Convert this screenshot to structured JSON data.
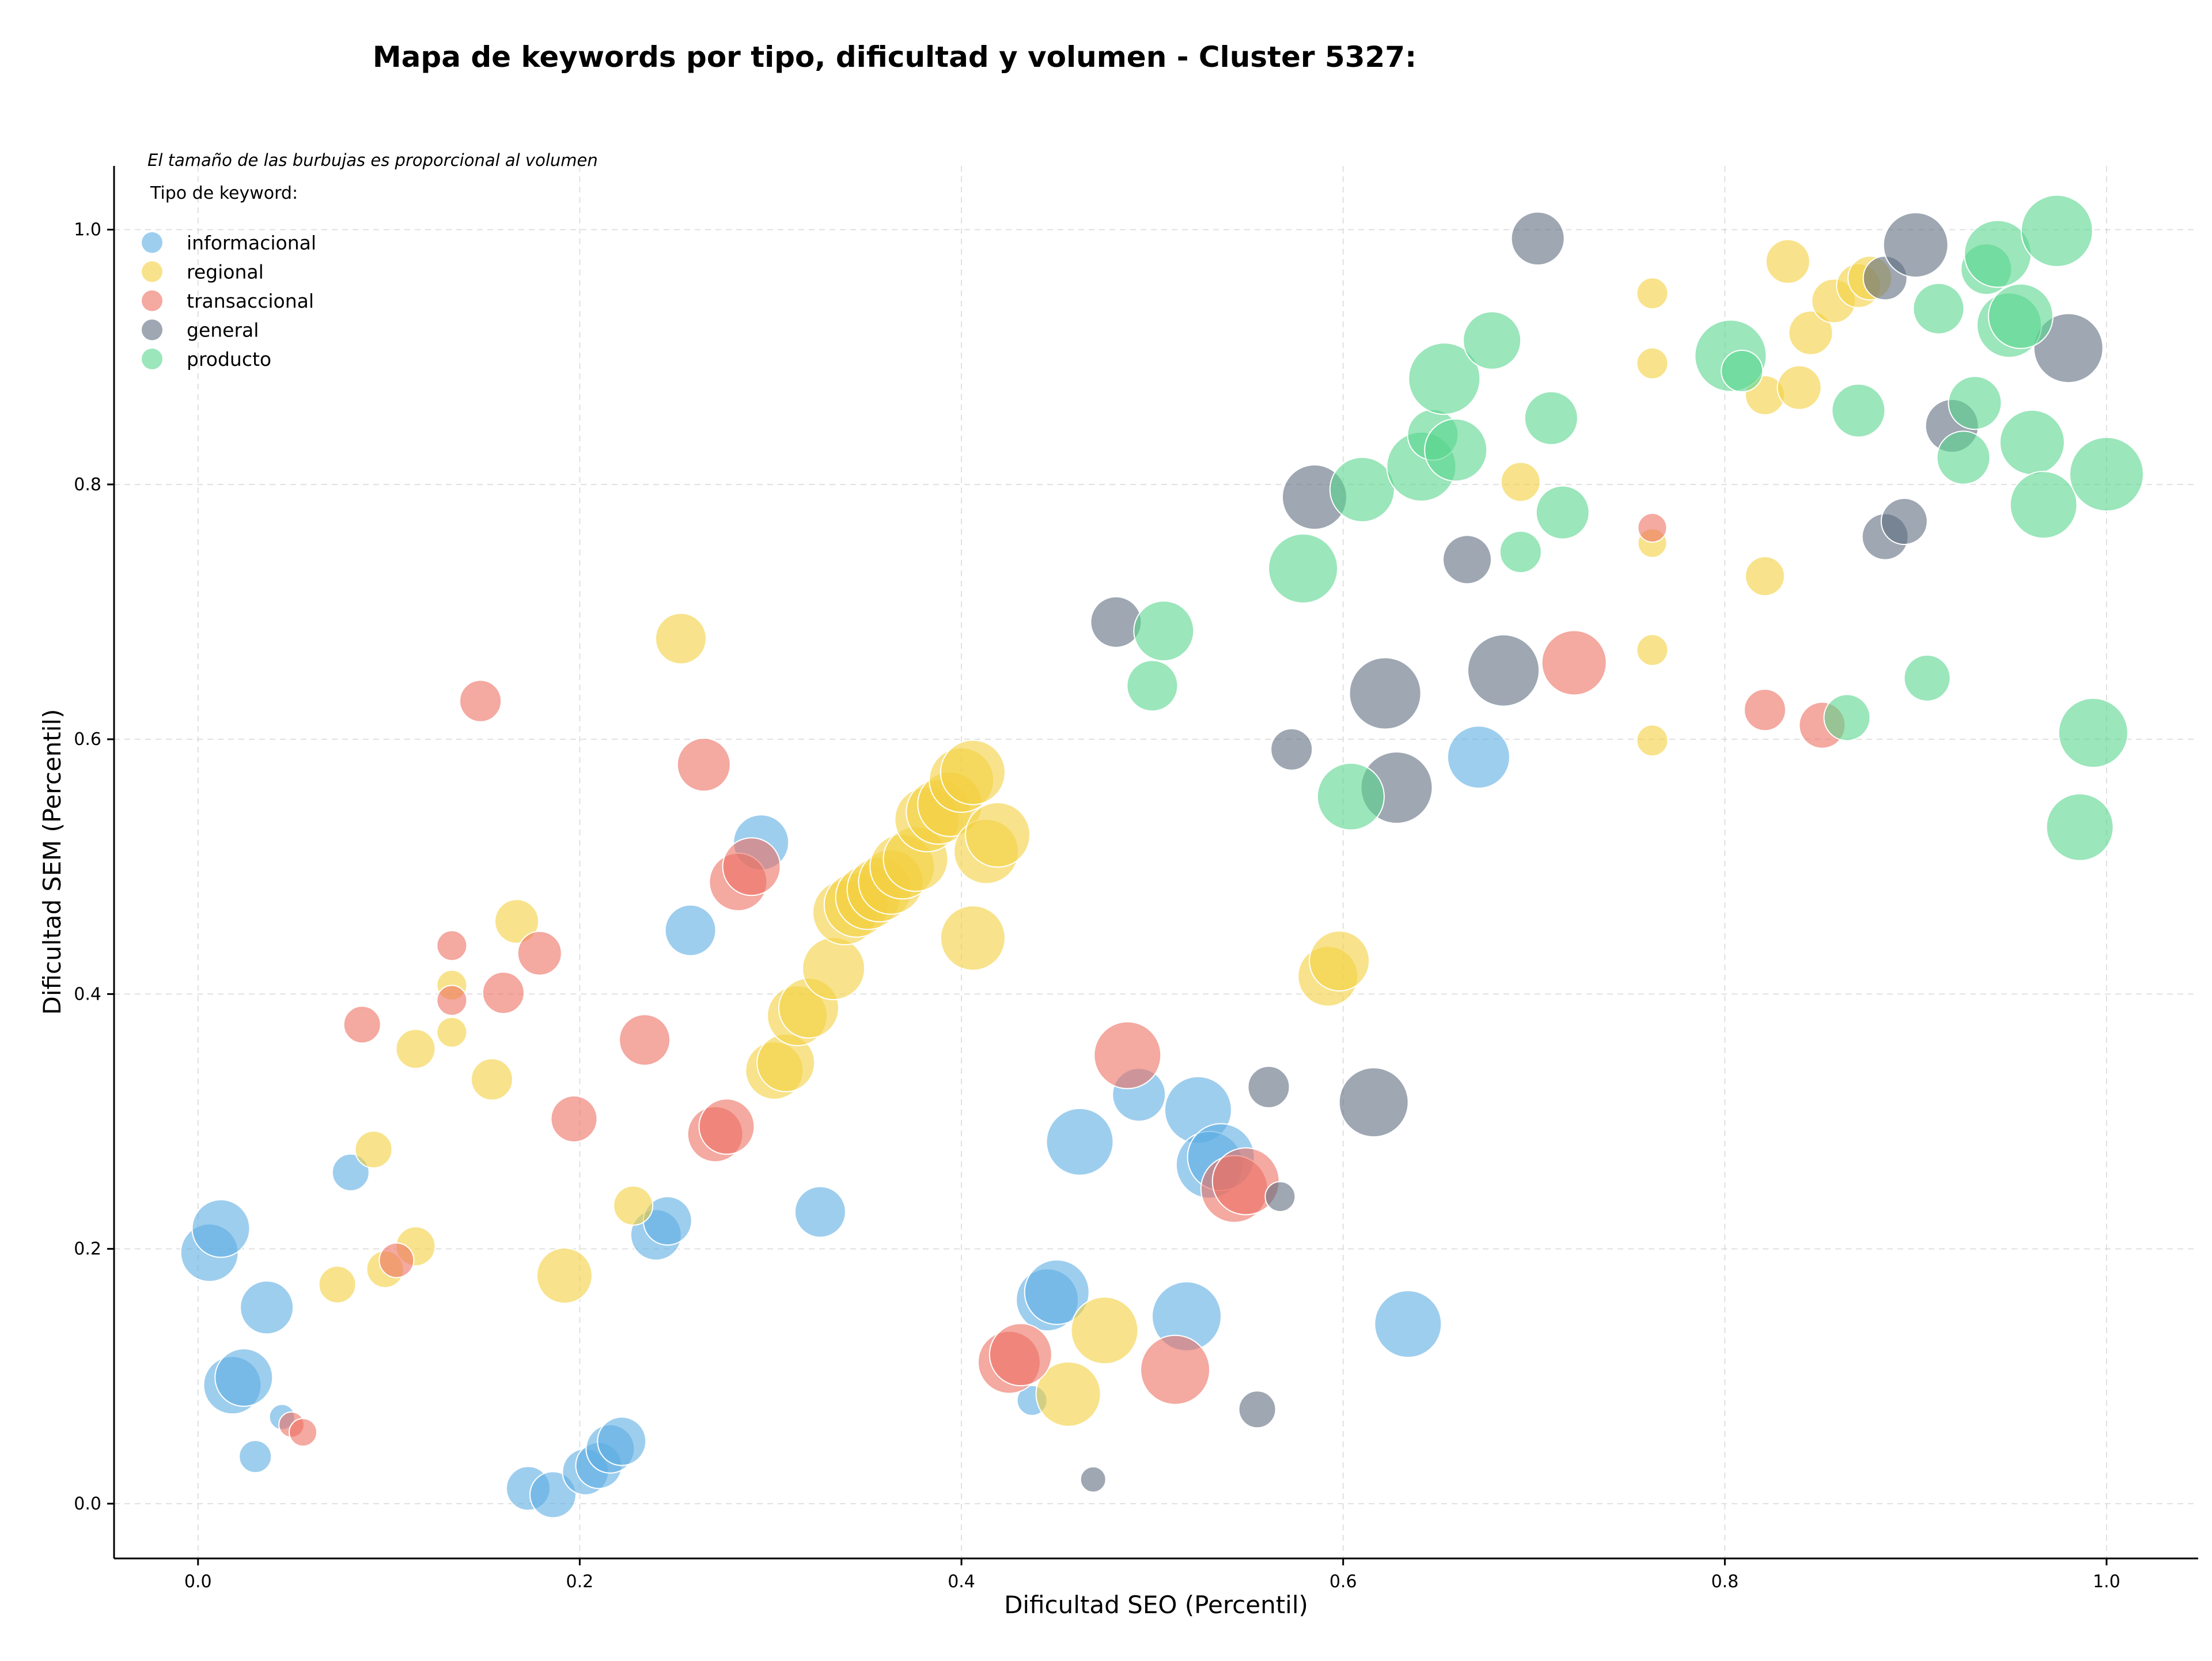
{
  "chart_data": {
    "type": "scatter",
    "title": "Mapa de keywords por tipo, dificultad y volumen - Cluster 5327:",
    "xlabel": "Dificultad SEO (Percentil)",
    "ylabel": "Dificultad SEM (Percentil)",
    "annotation": "El tamaño de las burbujas es proporcional al volumen",
    "legend_title": "Tipo de keyword:",
    "legend_position": "top-left",
    "grid": true,
    "xlim": [
      -0.044,
      1.048
    ],
    "ylim": [
      -0.043,
      1.05
    ],
    "x_ticks": [
      "0.0",
      "0.2",
      "0.4",
      "0.6",
      "0.8",
      "1.0"
    ],
    "y_ticks": [
      "0.0",
      "0.2",
      "0.4",
      "0.6",
      "0.8",
      "1.0"
    ],
    "series": [
      {
        "name": "informacional",
        "color": "#5DADE2",
        "points": [
          [
            0.006,
            0.197,
            50
          ],
          [
            0.012,
            0.216,
            50
          ],
          [
            0.018,
            0.093,
            50
          ],
          [
            0.024,
            0.099,
            50
          ],
          [
            0.036,
            0.154,
            46
          ],
          [
            0.044,
            0.068,
            22
          ],
          [
            0.03,
            0.037,
            28
          ],
          [
            0.08,
            0.26,
            32
          ],
          [
            0.173,
            0.012,
            38
          ],
          [
            0.186,
            0.007,
            40
          ],
          [
            0.203,
            0.025,
            40
          ],
          [
            0.21,
            0.03,
            40
          ],
          [
            0.216,
            0.043,
            42
          ],
          [
            0.222,
            0.049,
            42
          ],
          [
            0.24,
            0.211,
            44
          ],
          [
            0.246,
            0.222,
            42
          ],
          [
            0.258,
            0.45,
            44
          ],
          [
            0.295,
            0.519,
            48
          ],
          [
            0.326,
            0.229,
            44
          ],
          [
            0.437,
            0.081,
            26
          ],
          [
            0.445,
            0.16,
            54
          ],
          [
            0.45,
            0.166,
            56
          ],
          [
            0.462,
            0.284,
            58
          ],
          [
            0.493,
            0.321,
            46
          ],
          [
            0.524,
            0.309,
            58
          ],
          [
            0.53,
            0.266,
            58
          ],
          [
            0.536,
            0.272,
            58
          ],
          [
            0.518,
            0.147,
            60
          ],
          [
            0.634,
            0.141,
            58
          ],
          [
            0.671,
            0.586,
            54
          ]
        ]
      },
      {
        "name": "regional",
        "color": "#F4D03F",
        "points": [
          [
            0.073,
            0.172,
            32
          ],
          [
            0.092,
            0.278,
            32
          ],
          [
            0.098,
            0.184,
            32
          ],
          [
            0.114,
            0.202,
            34
          ],
          [
            0.114,
            0.357,
            34
          ],
          [
            0.133,
            0.407,
            26
          ],
          [
            0.133,
            0.37,
            26
          ],
          [
            0.154,
            0.333,
            36
          ],
          [
            0.167,
            0.457,
            38
          ],
          [
            0.192,
            0.179,
            48
          ],
          [
            0.228,
            0.234,
            34
          ],
          [
            0.253,
            0.679,
            44
          ],
          [
            0.302,
            0.34,
            50
          ],
          [
            0.308,
            0.346,
            50
          ],
          [
            0.314,
            0.383,
            52
          ],
          [
            0.32,
            0.389,
            52
          ],
          [
            0.333,
            0.42,
            54
          ],
          [
            0.339,
            0.464,
            56
          ],
          [
            0.345,
            0.47,
            56
          ],
          [
            0.351,
            0.476,
            56
          ],
          [
            0.357,
            0.482,
            56
          ],
          [
            0.363,
            0.488,
            56
          ],
          [
            0.369,
            0.5,
            56
          ],
          [
            0.376,
            0.506,
            56
          ],
          [
            0.382,
            0.537,
            56
          ],
          [
            0.388,
            0.543,
            56
          ],
          [
            0.394,
            0.549,
            56
          ],
          [
            0.4,
            0.568,
            56
          ],
          [
            0.406,
            0.574,
            56
          ],
          [
            0.406,
            0.444,
            56
          ],
          [
            0.413,
            0.512,
            56
          ],
          [
            0.419,
            0.525,
            56
          ],
          [
            0.456,
            0.086,
            56
          ],
          [
            0.475,
            0.136,
            58
          ],
          [
            0.592,
            0.414,
            52
          ],
          [
            0.598,
            0.426,
            52
          ],
          [
            0.693,
            0.802,
            34
          ],
          [
            0.762,
            0.95,
            27
          ],
          [
            0.762,
            0.895,
            27
          ],
          [
            0.762,
            0.754,
            25
          ],
          [
            0.762,
            0.67,
            27
          ],
          [
            0.762,
            0.599,
            27
          ],
          [
            0.821,
            0.87,
            34
          ],
          [
            0.821,
            0.728,
            34
          ],
          [
            0.833,
            0.975,
            38
          ],
          [
            0.839,
            0.876,
            38
          ],
          [
            0.845,
            0.919,
            38
          ],
          [
            0.857,
            0.944,
            38
          ],
          [
            0.87,
            0.956,
            38
          ],
          [
            0.876,
            0.962,
            38
          ]
        ]
      },
      {
        "name": "transaccional",
        "color": "#EC7063",
        "points": [
          [
            0.049,
            0.062,
            22
          ],
          [
            0.055,
            0.056,
            24
          ],
          [
            0.086,
            0.376,
            32
          ],
          [
            0.104,
            0.191,
            30
          ],
          [
            0.133,
            0.438,
            26
          ],
          [
            0.133,
            0.395,
            26
          ],
          [
            0.148,
            0.63,
            36
          ],
          [
            0.16,
            0.401,
            36
          ],
          [
            0.179,
            0.432,
            38
          ],
          [
            0.197,
            0.302,
            40
          ],
          [
            0.234,
            0.364,
            44
          ],
          [
            0.265,
            0.58,
            46
          ],
          [
            0.271,
            0.29,
            48
          ],
          [
            0.277,
            0.296,
            48
          ],
          [
            0.283,
            0.488,
            50
          ],
          [
            0.29,
            0.5,
            50
          ],
          [
            0.425,
            0.111,
            54
          ],
          [
            0.431,
            0.117,
            54
          ],
          [
            0.487,
            0.352,
            58
          ],
          [
            0.512,
            0.105,
            60
          ],
          [
            0.543,
            0.247,
            58
          ],
          [
            0.549,
            0.253,
            58
          ],
          [
            0.721,
            0.66,
            56
          ],
          [
            0.762,
            0.766,
            25
          ],
          [
            0.821,
            0.623,
            36
          ],
          [
            0.851,
            0.611,
            40
          ]
        ]
      },
      {
        "name": "general",
        "color": "#5D6D7E",
        "points": [
          [
            0.469,
            0.019,
            22
          ],
          [
            0.481,
            0.692,
            44
          ],
          [
            0.555,
            0.074,
            32
          ],
          [
            0.561,
            0.327,
            36
          ],
          [
            0.567,
            0.241,
            26
          ],
          [
            0.573,
            0.592,
            36
          ],
          [
            0.585,
            0.79,
            56
          ],
          [
            0.616,
            0.315,
            60
          ],
          [
            0.622,
            0.636,
            62
          ],
          [
            0.628,
            0.562,
            62
          ],
          [
            0.665,
            0.741,
            42
          ],
          [
            0.684,
            0.654,
            62
          ],
          [
            0.702,
            0.993,
            46
          ],
          [
            0.884,
            0.759,
            40
          ],
          [
            0.884,
            0.962,
            38
          ],
          [
            0.894,
            0.771,
            40
          ],
          [
            0.9,
            0.988,
            56
          ],
          [
            0.919,
            0.846,
            46
          ],
          [
            0.98,
            0.907,
            60
          ]
        ]
      },
      {
        "name": "producto",
        "color": "#58D68D",
        "points": [
          [
            0.5,
            0.642,
            44
          ],
          [
            0.506,
            0.685,
            52
          ],
          [
            0.579,
            0.734,
            60
          ],
          [
            0.604,
            0.555,
            58
          ],
          [
            0.61,
            0.796,
            56
          ],
          [
            0.641,
            0.814,
            60
          ],
          [
            0.647,
            0.839,
            44
          ],
          [
            0.653,
            0.883,
            62
          ],
          [
            0.659,
            0.827,
            54
          ],
          [
            0.678,
            0.913,
            50
          ],
          [
            0.693,
            0.747,
            36
          ],
          [
            0.709,
            0.852,
            46
          ],
          [
            0.715,
            0.778,
            46
          ],
          [
            0.803,
            0.901,
            62
          ],
          [
            0.809,
            0.889,
            36
          ],
          [
            0.864,
            0.617,
            40
          ],
          [
            0.87,
            0.858,
            46
          ],
          [
            0.906,
            0.648,
            40
          ],
          [
            0.912,
            0.938,
            44
          ],
          [
            0.925,
            0.821,
            46
          ],
          [
            0.931,
            0.864,
            46
          ],
          [
            0.937,
            0.969,
            44
          ],
          [
            0.943,
            0.981,
            58
          ],
          [
            0.949,
            0.925,
            56
          ],
          [
            0.955,
            0.932,
            56
          ],
          [
            0.961,
            0.833,
            56
          ],
          [
            0.967,
            0.784,
            58
          ],
          [
            0.974,
            0.999,
            62
          ],
          [
            0.986,
            0.531,
            58
          ],
          [
            0.993,
            0.605,
            60
          ],
          [
            1.0,
            0.808,
            64
          ]
        ]
      }
    ]
  }
}
